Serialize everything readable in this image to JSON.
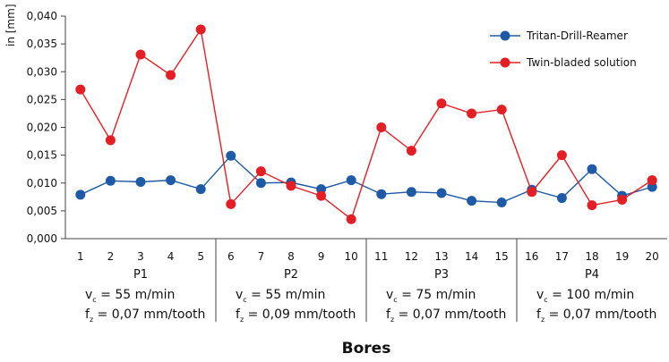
{
  "chart_data": {
    "type": "line",
    "ylabel": "in [mm]",
    "xlabel": "Bores",
    "ylim": [
      0,
      0.04
    ],
    "yticks": [
      "0,000",
      "0,005",
      "0,010",
      "0,015",
      "0,020",
      "0,025",
      "0,030",
      "0,035",
      "0,040"
    ],
    "categories": [
      "1",
      "2",
      "3",
      "4",
      "5",
      "6",
      "7",
      "8",
      "9",
      "10",
      "11",
      "12",
      "13",
      "14",
      "15",
      "16",
      "17",
      "18",
      "19",
      "20"
    ],
    "groups": [
      {
        "label": "P1",
        "speed": "v_c = 55 m/min",
        "feed": "f_z = 0,07 mm/tooth",
        "vc_value": " = 55 m/min",
        "fz_value": " = 0,07 mm/tooth"
      },
      {
        "label": "P2",
        "speed": "v_c = 55 m/min",
        "feed": "f_z = 0,09 mm/tooth",
        "vc_value": " = 55 m/min",
        "fz_value": " = 0,09 mm/tooth"
      },
      {
        "label": "P3",
        "speed": "v_c = 75 m/min",
        "feed": "f_z = 0,07 mm/tooth",
        "vc_value": " = 75 m/min",
        "fz_value": " = 0,07 mm/tooth"
      },
      {
        "label": "P4",
        "speed": "v_c = 100 m/min",
        "feed": "f_z = 0,07 mm/tooth",
        "vc_value": " = 100 m/min",
        "fz_value": " = 0,07 mm/tooth"
      }
    ],
    "series": [
      {
        "name": "Tritan-Drill-Reamer",
        "color": "#1f5aa6",
        "values": [
          0.0079,
          0.0104,
          0.0102,
          0.0105,
          0.0089,
          0.0149,
          0.01,
          0.0101,
          0.0089,
          0.0105,
          0.008,
          0.0084,
          0.0082,
          0.0068,
          0.0065,
          0.0088,
          0.0073,
          0.0125,
          0.0077,
          0.0093
        ]
      },
      {
        "name": "Twin-bladed solution",
        "color": "#e31e24",
        "values": [
          0.0268,
          0.0177,
          0.0331,
          0.0294,
          0.0376,
          0.0062,
          0.0121,
          0.0095,
          0.0077,
          0.0035,
          0.02,
          0.0158,
          0.0243,
          0.0225,
          0.0232,
          0.0084,
          0.015,
          0.006,
          0.007,
          0.0105
        ]
      }
    ],
    "grid": false,
    "legend": "top-right"
  }
}
